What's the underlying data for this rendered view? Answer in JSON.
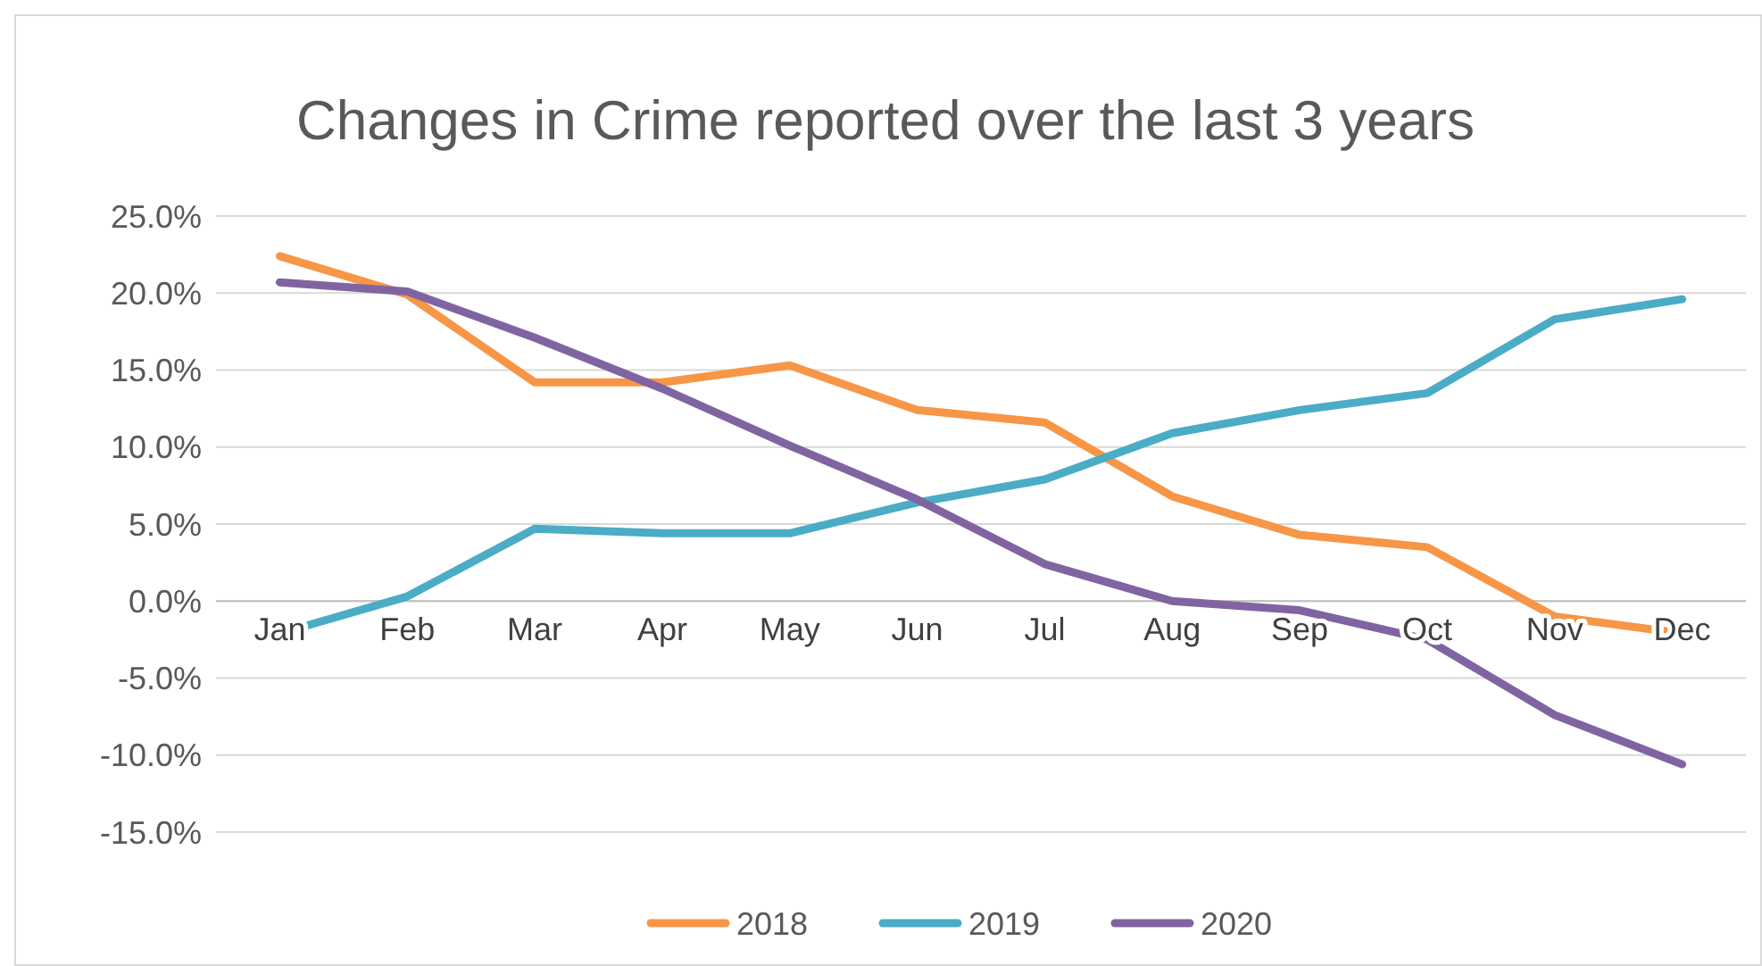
{
  "chart_data": {
    "type": "line",
    "title": "Changes in Crime reported over the last 3 years",
    "categories": [
      "Jan",
      "Feb",
      "Mar",
      "Apr",
      "May",
      "Jun",
      "Jul",
      "Aug",
      "Sep",
      "Oct",
      "Nov",
      "Dec"
    ],
    "series": [
      {
        "name": "2018",
        "color": "#f79646",
        "values": [
          22.4,
          19.9,
          14.2,
          14.2,
          15.3,
          12.4,
          11.6,
          6.8,
          4.3,
          3.5,
          -1.0,
          -2.1
        ]
      },
      {
        "name": "2019",
        "color": "#4bacc6",
        "values": [
          -2.1,
          0.3,
          4.7,
          4.4,
          4.4,
          6.4,
          7.9,
          10.9,
          12.4,
          13.5,
          18.3,
          19.6
        ]
      },
      {
        "name": "2020",
        "color": "#8064a2",
        "values": [
          20.7,
          20.1,
          17.1,
          13.8,
          10.1,
          6.6,
          2.4,
          0.0,
          -0.6,
          -2.5,
          -7.4,
          -10.6
        ]
      }
    ],
    "ylim": [
      -15,
      25
    ],
    "yticks": [
      {
        "value": -15,
        "label": "-15.0%"
      },
      {
        "value": -10,
        "label": "-10.0%"
      },
      {
        "value": -5,
        "label": "-5.0%"
      },
      {
        "value": 0,
        "label": "0.0%"
      },
      {
        "value": 5,
        "label": "5.0%"
      },
      {
        "value": 10,
        "label": "10.0%"
      },
      {
        "value": 15,
        "label": "15.0%"
      },
      {
        "value": 20,
        "label": "20.0%"
      },
      {
        "value": 25,
        "label": "25.0%"
      }
    ],
    "grid": "y",
    "legend": "bottom",
    "marker": "none",
    "line_style": "solid"
  }
}
